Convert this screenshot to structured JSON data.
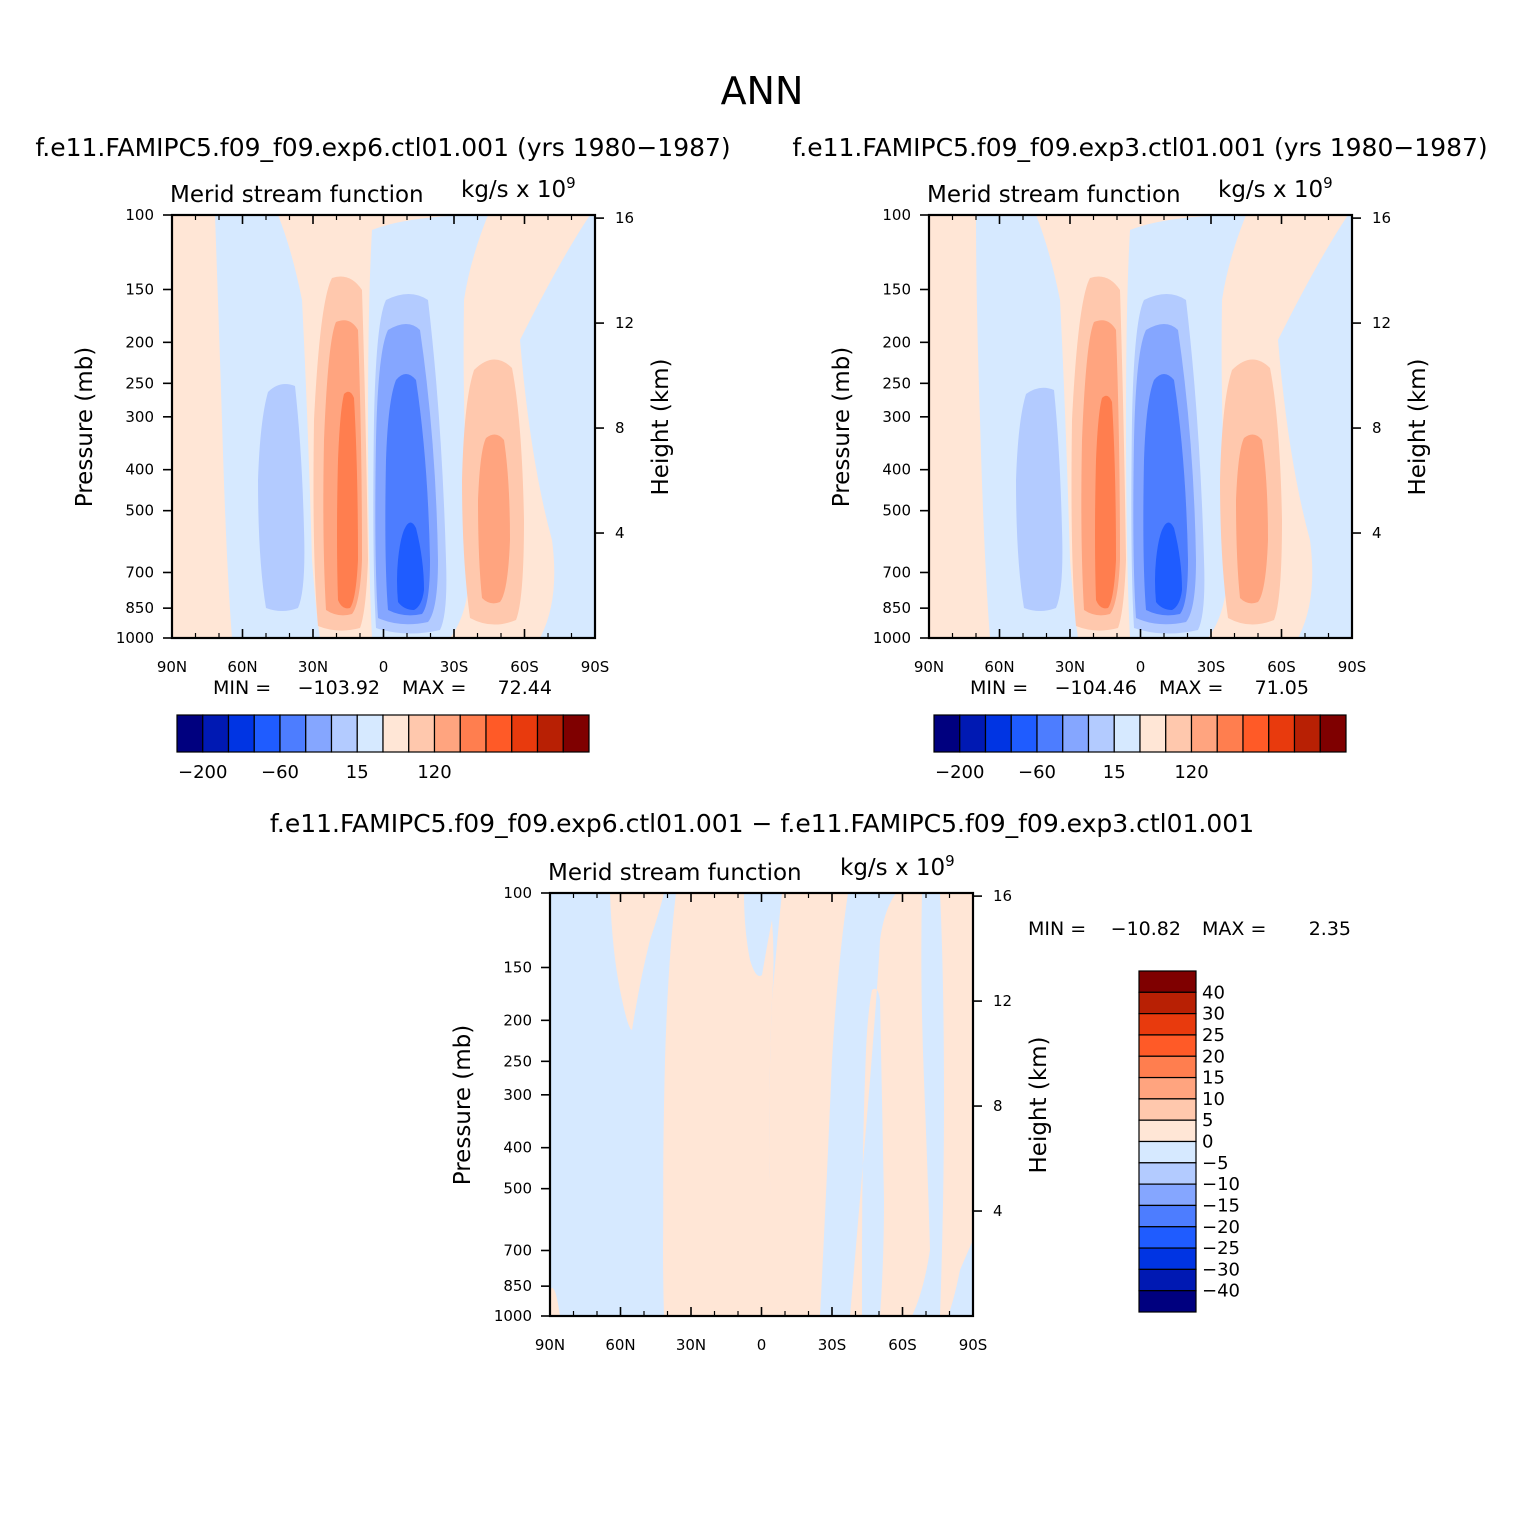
{
  "figure": {
    "title": "ANN",
    "unit_label": "kg/s x 10",
    "unit_exponent": "9",
    "variable_label": "Merid stream function"
  },
  "colors": {
    "main_levels": [
      "#00007f",
      "#0019b3",
      "#0034e3",
      "#1f5cff",
      "#4d7dff",
      "#85a6ff",
      "#b3cbff",
      "#d6e9ff",
      "#ffe6d6",
      "#ffc8ad",
      "#ffa47f",
      "#ff7e4f",
      "#ff5a27",
      "#e83a0d",
      "#b82004",
      "#7f0000"
    ],
    "diff_levels": [
      "#00007f",
      "#0019b3",
      "#0034e3",
      "#1f5cff",
      "#4d7dff",
      "#85a6ff",
      "#b3cbff",
      "#d6e9ff",
      "#ffe6d6",
      "#ffc8ad",
      "#ffa47f",
      "#ff7e4f",
      "#ff5a27",
      "#e83a0d",
      "#b82004",
      "#7f0000"
    ]
  },
  "chart_data": [
    {
      "type": "heatmap",
      "case_title": "f.e11.FAMIPC5.f09_f09.exp6.ctl01.001 (yrs 1980-1987)",
      "title": "Merid stream function",
      "units": "kg/s x 10^9",
      "xlabel": "",
      "ylabel": "Pressure (mb)",
      "y2label": "Height (km)",
      "x_ticks": [
        "90N",
        "60N",
        "30N",
        "0",
        "30S",
        "60S",
        "90S"
      ],
      "x_values": [
        90,
        60,
        30,
        0,
        -30,
        -60,
        -90
      ],
      "y_ticks": [
        100,
        150,
        200,
        250,
        300,
        400,
        500,
        700,
        850,
        1000
      ],
      "y_scale": "log",
      "ylim": [
        1000,
        100
      ],
      "y2_ticks": [
        4,
        8,
        12,
        16
      ],
      "min_label": "MIN =",
      "min": "-103.92",
      "max_label": "MAX =",
      "max": "72.44",
      "colorbar_labels": [
        "-200",
        "-60",
        "15",
        "120"
      ],
      "cells": [
        {
          "lat": 28,
          "p": 550,
          "value": 50
        },
        {
          "lat": -10,
          "p": 600,
          "value": -100
        },
        {
          "lat": -47,
          "p": 500,
          "value": 35
        },
        {
          "lat": 50,
          "p": 500,
          "value": -20
        }
      ]
    },
    {
      "type": "heatmap",
      "case_title": "f.e11.FAMIPC5.f09_f09.exp3.ctl01.001 (yrs 1980-1987)",
      "title": "Merid stream function",
      "units": "kg/s x 10^9",
      "xlabel": "",
      "ylabel": "Pressure (mb)",
      "y2label": "Height (km)",
      "x_ticks": [
        "90N",
        "60N",
        "30N",
        "0",
        "30S",
        "60S",
        "90S"
      ],
      "x_values": [
        90,
        60,
        30,
        0,
        -30,
        -60,
        -90
      ],
      "y_ticks": [
        100,
        150,
        200,
        250,
        300,
        400,
        500,
        700,
        850,
        1000
      ],
      "y_scale": "log",
      "ylim": [
        1000,
        100
      ],
      "y2_ticks": [
        4,
        8,
        12,
        16
      ],
      "min_label": "MIN =",
      "min": "-104.46",
      "max_label": "MAX =",
      "max": "71.05",
      "colorbar_labels": [
        "-200",
        "-60",
        "15",
        "120"
      ],
      "cells": [
        {
          "lat": 28,
          "p": 550,
          "value": 50
        },
        {
          "lat": -10,
          "p": 600,
          "value": -100
        },
        {
          "lat": -47,
          "p": 500,
          "value": 35
        },
        {
          "lat": 50,
          "p": 500,
          "value": -20
        }
      ]
    },
    {
      "type": "heatmap",
      "case_title": "f.e11.FAMIPC5.f09_f09.exp6.ctl01.001 - f.e11.FAMIPC5.f09_f09.exp3.ctl01.001",
      "title": "Merid stream function",
      "units": "kg/s x 10^9",
      "xlabel": "",
      "ylabel": "Pressure (mb)",
      "y2label": "Height (km)",
      "x_ticks": [
        "90N",
        "60N",
        "30N",
        "0",
        "30S",
        "60S",
        "90S"
      ],
      "x_values": [
        90,
        60,
        30,
        0,
        -30,
        -60,
        -90
      ],
      "y_ticks": [
        100,
        150,
        200,
        250,
        300,
        400,
        500,
        700,
        850,
        1000
      ],
      "y_scale": "log",
      "ylim": [
        1000,
        100
      ],
      "y2_ticks": [
        4,
        8,
        12,
        16
      ],
      "min_label": "MIN =",
      "min": "-10.82",
      "max_label": "MAX =",
      "max": "2.35",
      "colorbar_labels": [
        "40",
        "30",
        "25",
        "20",
        "15",
        "10",
        "5",
        "0",
        "-5",
        "-10",
        "-15",
        "-20",
        "-25",
        "-30",
        "-40"
      ]
    }
  ]
}
